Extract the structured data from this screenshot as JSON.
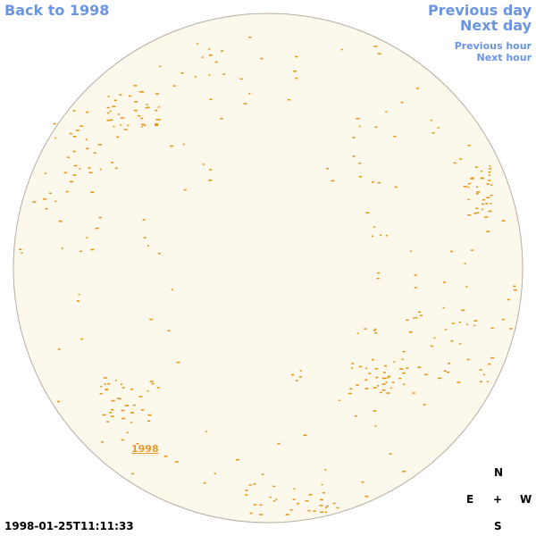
{
  "navigation": {
    "back": "Back to 1998",
    "previous_day": "Previous day",
    "next_day": "Next day",
    "previous_hour": "Previous hour",
    "next_hour": "Next hour"
  },
  "disk": {
    "year_link": "1998"
  },
  "compass": {
    "north": "N",
    "east": "E",
    "center": "+",
    "west": "W",
    "south": "S"
  },
  "timestamp": "1998-01-25T11:11:33"
}
